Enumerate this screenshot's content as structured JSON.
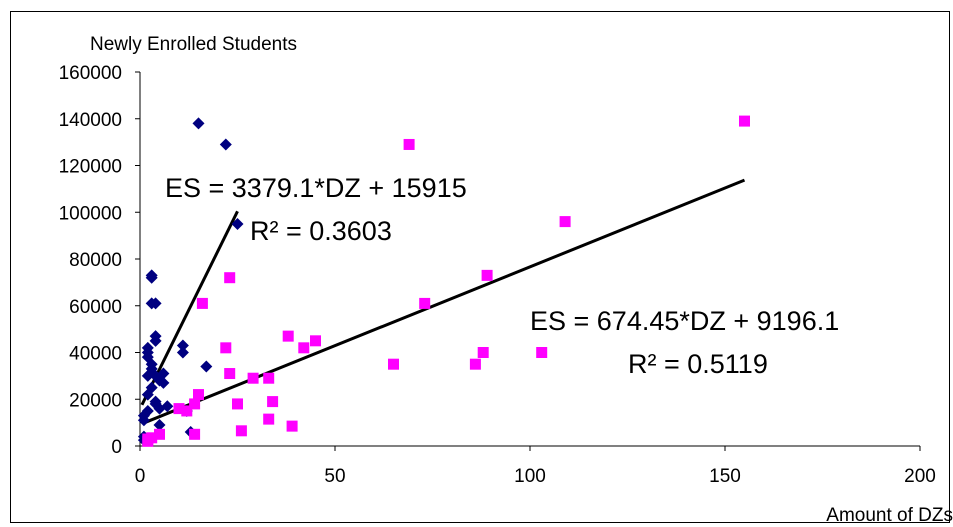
{
  "chart_data": {
    "type": "scatter",
    "xlabel": "Amount of DZs",
    "ylabel": "Newly Enrolled Students",
    "xlim": [
      0,
      200
    ],
    "ylim": [
      0,
      160000
    ],
    "xticks": [
      0,
      50,
      100,
      150,
      200
    ],
    "yticks": [
      0,
      20000,
      40000,
      60000,
      80000,
      100000,
      120000,
      140000,
      160000
    ],
    "grid": false,
    "series": [
      {
        "marker": "diamond",
        "color": "#000080",
        "points": [
          [
            1,
            4000
          ],
          [
            1,
            2500
          ],
          [
            1,
            13000
          ],
          [
            1,
            11000
          ],
          [
            2,
            42000
          ],
          [
            2,
            40000
          ],
          [
            2,
            38000
          ],
          [
            2,
            22000
          ],
          [
            2,
            30000
          ],
          [
            2,
            15000
          ],
          [
            3,
            35000
          ],
          [
            3,
            61000
          ],
          [
            3,
            73000
          ],
          [
            3,
            72000
          ],
          [
            3,
            33000
          ],
          [
            3,
            25000
          ],
          [
            4,
            61000
          ],
          [
            4,
            47000
          ],
          [
            4,
            45000
          ],
          [
            4,
            30000
          ],
          [
            4,
            18000
          ],
          [
            4,
            19000
          ],
          [
            5,
            28000
          ],
          [
            5,
            16000
          ],
          [
            5,
            9000
          ],
          [
            6,
            31000
          ],
          [
            6,
            27000
          ],
          [
            7,
            17000
          ],
          [
            11,
            43000
          ],
          [
            11,
            40000
          ],
          [
            12,
            15000
          ],
          [
            13,
            6000
          ],
          [
            15,
            138000
          ],
          [
            17,
            34000
          ],
          [
            22,
            129000
          ],
          [
            25,
            95000
          ]
        ],
        "trendline": {
          "slope": 3379.1,
          "intercept": 15915,
          "x_range": [
            0.5,
            25
          ],
          "equation": "ES = 3379.1*DZ + 15915",
          "r2_label": "R² = 0.3603"
        }
      },
      {
        "marker": "square",
        "color": "#ff00ff",
        "points": [
          [
            2,
            2000
          ],
          [
            2,
            3000
          ],
          [
            3,
            3500
          ],
          [
            5,
            5000
          ],
          [
            10,
            16000
          ],
          [
            12,
            15000
          ],
          [
            14,
            18000
          ],
          [
            14,
            5000
          ],
          [
            15,
            22000
          ],
          [
            16,
            61000
          ],
          [
            22,
            42000
          ],
          [
            23,
            31000
          ],
          [
            23,
            72000
          ],
          [
            25,
            18000
          ],
          [
            26,
            6500
          ],
          [
            29,
            29000
          ],
          [
            33,
            29000
          ],
          [
            33,
            11500
          ],
          [
            34,
            19000
          ],
          [
            38,
            47000
          ],
          [
            39,
            8500
          ],
          [
            42,
            42000
          ],
          [
            45,
            45000
          ],
          [
            65,
            35000
          ],
          [
            69,
            129000
          ],
          [
            73,
            61000
          ],
          [
            86,
            35000
          ],
          [
            88,
            40000
          ],
          [
            89,
            73000
          ],
          [
            103,
            40000
          ],
          [
            109,
            96000
          ],
          [
            155,
            139000
          ]
        ],
        "trendline": {
          "slope": 674.45,
          "intercept": 9196.1,
          "x_range": [
            1,
            155
          ],
          "equation": "ES = 674.45*DZ + 9196.1",
          "r2_label": "R² = 0.5119"
        }
      }
    ]
  }
}
